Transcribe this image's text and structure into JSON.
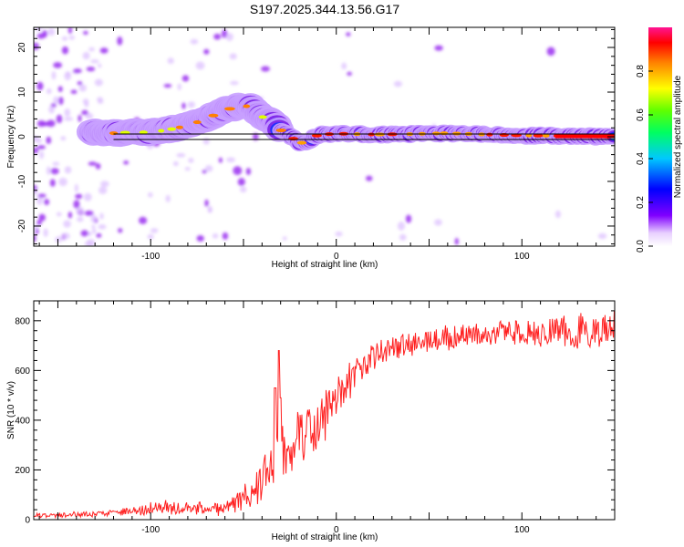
{
  "title": "S197.2025.344.13.56.G17",
  "chart_data": [
    {
      "type": "heatmap",
      "title": "S197.2025.344.13.56.G17",
      "xlabel": "Height of straight line (km)",
      "ylabel": "Frequency (Hz)",
      "xlim": [
        -163,
        150
      ],
      "ylim": [
        -24.5,
        24.5
      ],
      "x_ticks": [
        -100,
        0,
        100
      ],
      "y_ticks": [
        -20,
        -10,
        0,
        10,
        20
      ],
      "x_tick_labels": [
        "-100",
        "0",
        "100"
      ],
      "y_tick_labels": [
        "-20",
        "-10",
        "0",
        "10",
        "20"
      ],
      "colorbar": {
        "label": "Normalized spectral amplitude",
        "range": [
          0,
          1
        ],
        "ticks": [
          0.0,
          0.2,
          0.4,
          0.6,
          0.8
        ],
        "tick_labels": [
          "0.0",
          "0.2",
          "0.4",
          "0.6",
          "0.8"
        ]
      },
      "ridge": {
        "x": [
          -130,
          -120,
          -110,
          -100,
          -90,
          -80,
          -70,
          -60,
          -50,
          -45,
          -40,
          -35,
          -30,
          -25,
          -20,
          -15,
          -10,
          0,
          20,
          40,
          60,
          80,
          100,
          120,
          150
        ],
        "freq": [
          1,
          0.8,
          1,
          1,
          1.6,
          2.5,
          4,
          6,
          7,
          6.5,
          4.5,
          3.5,
          1.5,
          0.2,
          -1.5,
          -1,
          0.4,
          0.7,
          0.5,
          0.6,
          0.8,
          0.5,
          0.3,
          0.2,
          0.0
        ]
      },
      "model_line_hz": 0
    },
    {
      "type": "line",
      "xlabel": "Height of straight line (km)",
      "ylabel": "SNR (10 * v/v)",
      "xlim": [
        -163,
        150
      ],
      "ylim": [
        0,
        880
      ],
      "x_ticks": [
        -100,
        0,
        100
      ],
      "y_ticks": [
        0,
        200,
        400,
        600,
        800
      ],
      "x_tick_labels": [
        "-100",
        "0",
        "100"
      ],
      "y_tick_labels": [
        "0",
        "200",
        "400",
        "600",
        "800"
      ],
      "series": [
        {
          "name": "SNR",
          "color": "#ff2020",
          "x": [
            -163,
            -150,
            -140,
            -130,
            -120,
            -110,
            -100,
            -90,
            -80,
            -70,
            -60,
            -55,
            -50,
            -45,
            -40,
            -35,
            -30,
            -25,
            -20,
            -15,
            -10,
            -5,
            0,
            5,
            10,
            15,
            20,
            30,
            40,
            50,
            60,
            70,
            80,
            90,
            100,
            110,
            120,
            130,
            140,
            150
          ],
          "mean": [
            18,
            18,
            20,
            22,
            28,
            35,
            45,
            48,
            45,
            42,
            40,
            55,
            80,
            120,
            180,
            240,
            270,
            290,
            320,
            350,
            380,
            430,
            490,
            540,
            590,
            630,
            660,
            690,
            700,
            720,
            730,
            740,
            745,
            750,
            755,
            758,
            760,
            760,
            762,
            765
          ],
          "amplitude": [
            10,
            10,
            12,
            12,
            15,
            20,
            30,
            35,
            30,
            30,
            25,
            50,
            60,
            90,
            110,
            120,
            120,
            120,
            120,
            110,
            110,
            110,
            100,
            90,
            80,
            70,
            60,
            60,
            55,
            55,
            55,
            55,
            55,
            60,
            65,
            70,
            75,
            80,
            80,
            80
          ],
          "peaks": [
            {
              "x": -31,
              "y": 680
            },
            {
              "x": -33,
              "y": 530
            },
            {
              "x": -30,
              "y": 490
            }
          ]
        }
      ]
    }
  ],
  "colors": {
    "line": "#ff2020",
    "ridge_hot": "#ff0000",
    "frame": "#000000"
  }
}
